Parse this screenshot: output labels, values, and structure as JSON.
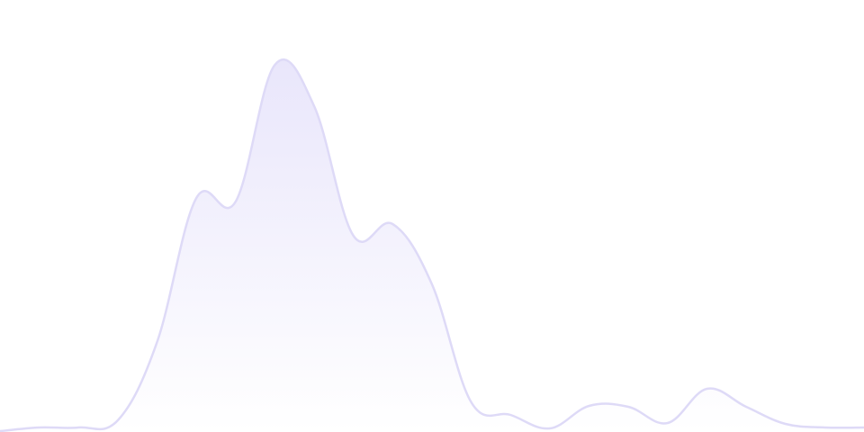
{
  "chart_data": {
    "type": "area",
    "title": "",
    "xlabel": "",
    "ylabel": "",
    "x": [
      0,
      1,
      2,
      3,
      4,
      5,
      6,
      7,
      8,
      9,
      10,
      11,
      12,
      13,
      14,
      15,
      16,
      17,
      18,
      19,
      20,
      21,
      22
    ],
    "values": [
      1,
      5,
      5,
      13,
      100,
      260,
      256,
      408,
      362,
      218,
      231,
      164,
      33,
      19,
      4,
      29,
      28,
      10,
      48,
      28,
      9,
      5,
      5
    ],
    "xlim": [
      0,
      22
    ],
    "ylim": [
      0,
      480
    ],
    "grid": false,
    "axes_visible": false,
    "legend": "none",
    "smooth": true,
    "colors": {
      "line": "#dedaf7",
      "fill_top": "#e9e6fb",
      "fill_bottom": "#ffffff"
    }
  }
}
